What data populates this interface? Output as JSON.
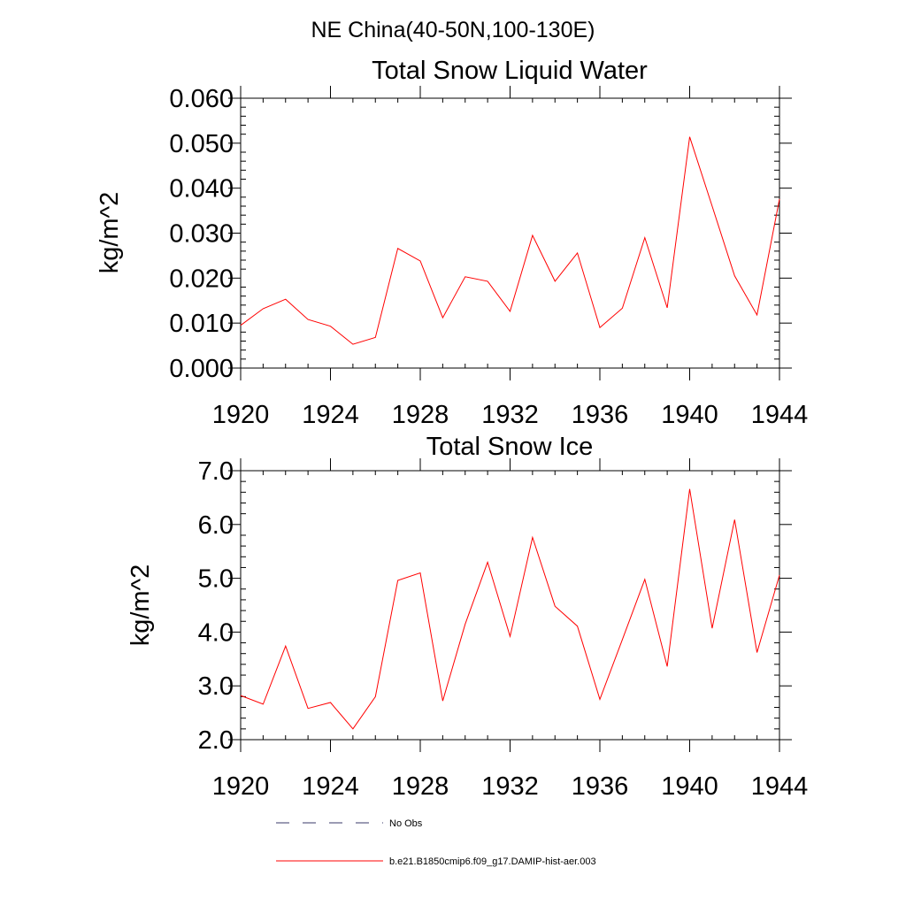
{
  "figure": {
    "title": "NE China(40-50N,100-130E)"
  },
  "chart_data": [
    {
      "type": "line",
      "title": "Total Snow Liquid Water",
      "ylabel": "kg/m^2",
      "xlabel": "",
      "xlim": [
        1920,
        1944
      ],
      "ylim": [
        0.0,
        0.06
      ],
      "xticks": [
        1920,
        1924,
        1928,
        1932,
        1936,
        1940,
        1944
      ],
      "xtick_labels": [
        "1920",
        "1924",
        "1928",
        "1932",
        "1936",
        "1940",
        "1944"
      ],
      "yticks": [
        0.0,
        0.01,
        0.02,
        0.03,
        0.04,
        0.05,
        0.06
      ],
      "ytick_labels": [
        "0.000",
        "0.010",
        "0.020",
        "0.030",
        "0.040",
        "0.050",
        "0.060"
      ],
      "x": [
        1920,
        1921,
        1922,
        1923,
        1924,
        1925,
        1926,
        1927,
        1928,
        1929,
        1930,
        1931,
        1932,
        1933,
        1934,
        1935,
        1936,
        1937,
        1938,
        1939,
        1940,
        1941,
        1942,
        1943,
        1944
      ],
      "series": [
        {
          "name": "b.e21.B1850cmip6.f09_g17.DAMIP-hist-aer.003",
          "color": "#ff0000",
          "values": [
            0.0095,
            0.0132,
            0.0153,
            0.0108,
            0.0093,
            0.0053,
            0.0068,
            0.0266,
            0.0238,
            0.0112,
            0.0203,
            0.0193,
            0.0126,
            0.0295,
            0.0193,
            0.0256,
            0.009,
            0.0133,
            0.029,
            0.0134,
            0.0514,
            0.036,
            0.0205,
            0.0118,
            0.0376
          ]
        }
      ],
      "grid": false
    },
    {
      "type": "line",
      "title": "Total Snow Ice",
      "ylabel": "kg/m^2",
      "xlabel": "",
      "xlim": [
        1920,
        1944
      ],
      "ylim": [
        2.0,
        7.0
      ],
      "xticks": [
        1920,
        1924,
        1928,
        1932,
        1936,
        1940,
        1944
      ],
      "xtick_labels": [
        "1920",
        "1924",
        "1928",
        "1932",
        "1936",
        "1940",
        "1944"
      ],
      "yticks": [
        2.0,
        3.0,
        4.0,
        5.0,
        6.0,
        7.0
      ],
      "ytick_labels": [
        "2.0",
        "3.0",
        "4.0",
        "5.0",
        "6.0",
        "7.0"
      ],
      "x": [
        1920,
        1921,
        1922,
        1923,
        1924,
        1925,
        1926,
        1927,
        1928,
        1929,
        1930,
        1931,
        1932,
        1933,
        1934,
        1935,
        1936,
        1937,
        1938,
        1939,
        1940,
        1941,
        1942,
        1943,
        1944
      ],
      "series": [
        {
          "name": "b.e21.B1850cmip6.f09_g17.DAMIP-hist-aer.003",
          "color": "#ff0000",
          "values": [
            2.82,
            2.66,
            3.74,
            2.58,
            2.69,
            2.2,
            2.8,
            4.96,
            5.1,
            2.72,
            4.15,
            5.3,
            3.92,
            5.76,
            4.48,
            4.11,
            2.75,
            3.86,
            4.98,
            3.36,
            6.66,
            4.07,
            6.09,
            3.62,
            5.06
          ]
        }
      ],
      "grid": false
    }
  ],
  "legend": {
    "placement": "bottom",
    "entries": [
      {
        "label": "No Obs",
        "color": "#3a3a6a",
        "style": "dashed"
      },
      {
        "label": "b.e21.B1850cmip6.f09_g17.DAMIP-hist-aer.003",
        "color": "#ff0000",
        "style": "solid"
      }
    ]
  }
}
